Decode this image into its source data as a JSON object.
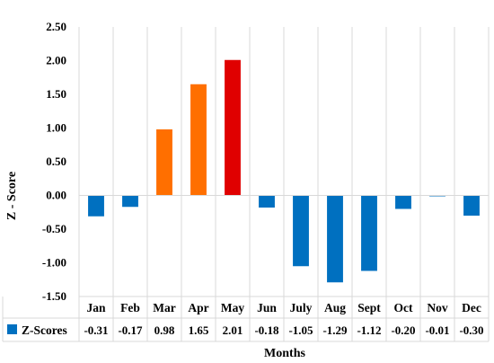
{
  "chart_data": {
    "type": "bar",
    "title": "",
    "xlabel": "Months",
    "ylabel": "Z - Score",
    "ylim": [
      -1.5,
      2.5
    ],
    "yticks": [
      "-1.50",
      "-1.00",
      "-0.50",
      "0.00",
      "0.50",
      "1.00",
      "1.50",
      "2.00",
      "2.50"
    ],
    "grid": "vertical category separators",
    "legend": "left of data table",
    "categories": [
      "Jan",
      "Feb",
      "Mar",
      "Apr",
      "May",
      "Jun",
      "July",
      "Aug",
      "Sept",
      "Oct",
      "Nov",
      "Dec"
    ],
    "series": [
      {
        "name": "Z-Scores",
        "values": [
          -0.31,
          -0.17,
          0.98,
          1.65,
          2.01,
          -0.18,
          -1.05,
          -1.29,
          -1.12,
          -0.2,
          -0.01,
          -0.3
        ],
        "value_labels": [
          "-0.31",
          "-0.17",
          "0.98",
          "1.65",
          "2.01",
          "-0.18",
          "-1.05",
          "-1.29",
          "-1.12",
          "-0.20",
          "-0.01",
          "-0.30"
        ],
        "color": "#0070c0"
      }
    ],
    "bar_colors": [
      "#0070c0",
      "#0070c0",
      "#ff6f00",
      "#ff6f00",
      "#e00000",
      "#0070c0",
      "#0070c0",
      "#0070c0",
      "#0070c0",
      "#0070c0",
      "#0070c0",
      "#0070c0"
    ]
  }
}
